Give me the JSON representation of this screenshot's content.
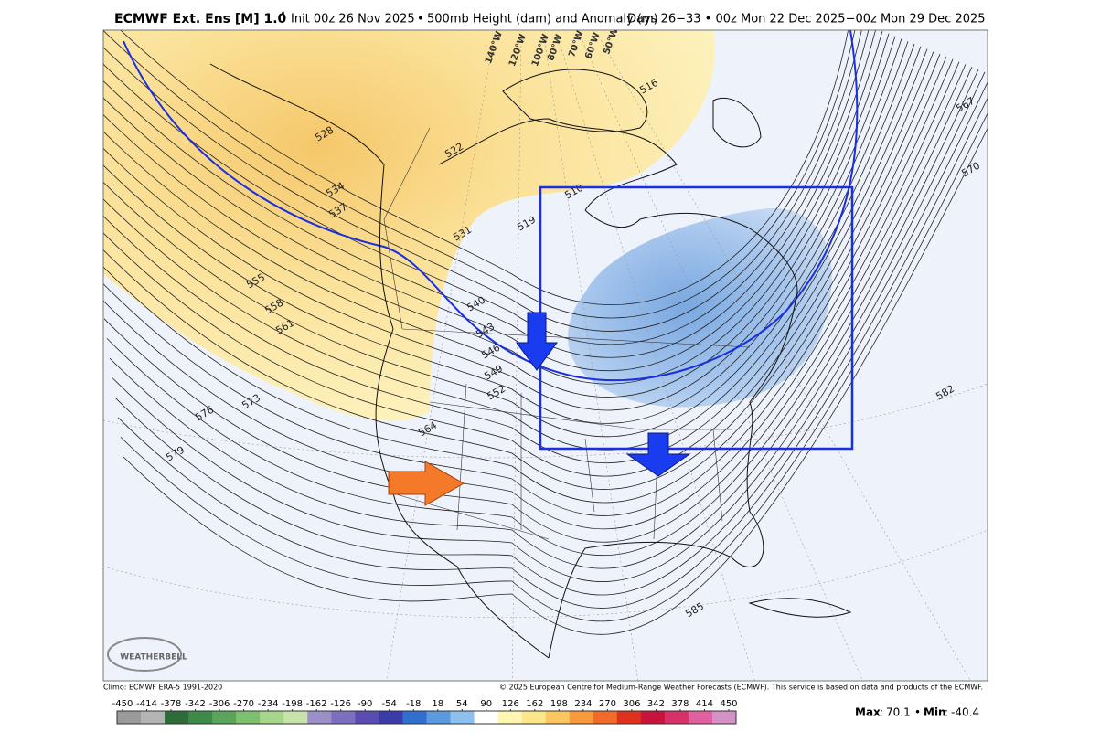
{
  "header": {
    "model": "ECMWF Ext. Ens [M] 1.0",
    "degree": "°",
    "init": "Init 00z 26 Nov 2025",
    "field": "500mb Height (dam) and Anomaly (m)",
    "valid": "Days 26−33 • 00z Mon 22 Dec 2025−00z Mon 29 Dec 2025",
    "separator": "•"
  },
  "map": {
    "contour_labels": [
      528,
      534,
      537,
      555,
      558,
      561,
      573,
      576,
      579,
      531,
      519,
      510,
      540,
      543,
      546,
      549,
      552,
      564,
      582,
      585,
      567,
      570,
      516,
      522
    ],
    "longitude_labels": [
      "140°W",
      "120°W",
      "100°W",
      "80°W",
      "70°W",
      "60°W",
      "50°W"
    ],
    "logo": "WEATHERBELL"
  },
  "footer": {
    "climo": "Climo: ECMWF ERA-5 1991-2020",
    "copyright": "© 2025 European Centre for Medium-Range Weather Forecasts (ECMWF). This service is based on data and products of the ECMWF."
  },
  "colorbar": {
    "ticks": [
      -450,
      -414,
      -378,
      -342,
      -306,
      -270,
      -234,
      -198,
      -162,
      -126,
      -90,
      -54,
      -18,
      18,
      54,
      90,
      126,
      162,
      198,
      234,
      270,
      306,
      342,
      378,
      414,
      450
    ],
    "colors": [
      "#9a9a9a",
      "#b4b4b4",
      "#2e6b3a",
      "#3e8a48",
      "#5aa55a",
      "#7fc06e",
      "#a6d68a",
      "#c6e4a8",
      "#9c8fc8",
      "#7d6fbf",
      "#5a4cb0",
      "#3a3aa8",
      "#2f6fd0",
      "#5c9ae0",
      "#8cc0ee",
      "#ffffff",
      "#fff6b0",
      "#fde68a",
      "#fbc560",
      "#f89a3c",
      "#f26a2a",
      "#e0301e",
      "#c8143c",
      "#d8306a",
      "#e060a0",
      "#d690c8"
    ],
    "max_label": "Max",
    "max": 70.1,
    "min_label": "Min",
    "min": -40.4,
    "separator": ":",
    "bullet": "•"
  }
}
